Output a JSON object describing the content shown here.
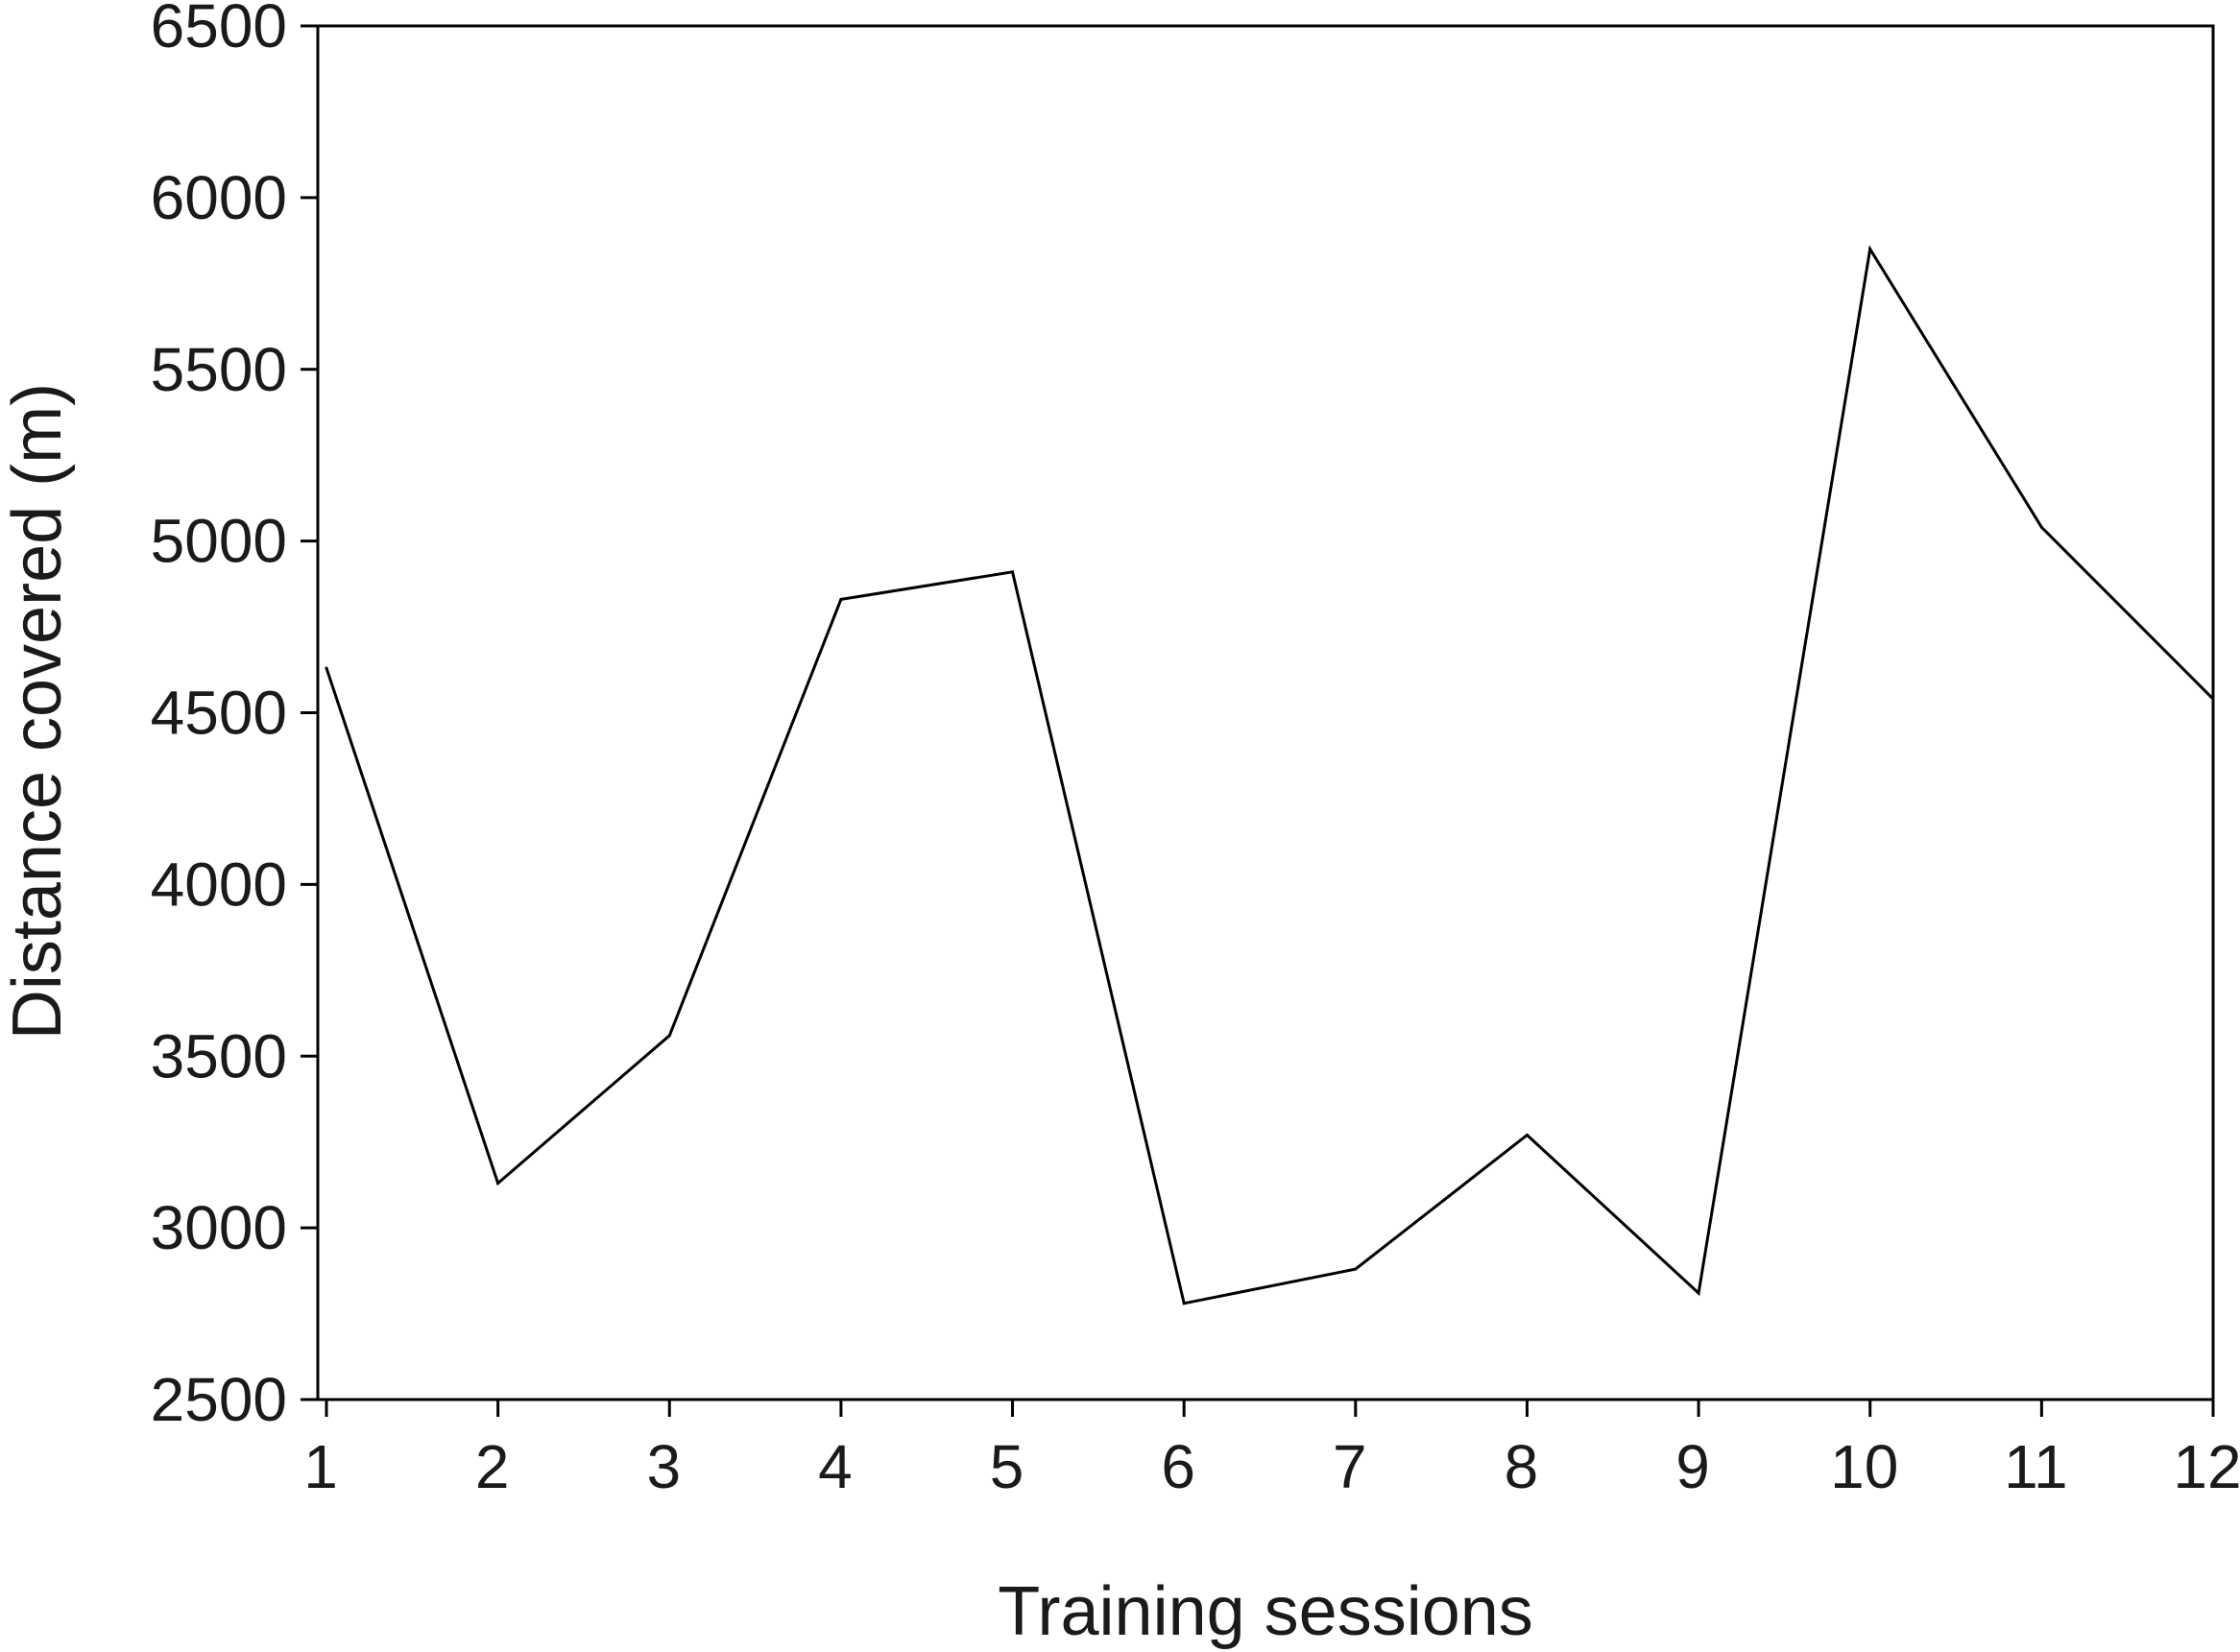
{
  "chart_data": {
    "type": "line",
    "title": "",
    "xlabel": "Training sessions",
    "ylabel": "Distance covered (m)",
    "x": [
      1,
      2,
      3,
      4,
      5,
      6,
      7,
      8,
      9,
      10,
      11,
      12
    ],
    "xticks": [
      "1",
      "2",
      "3",
      "4",
      "5",
      "6",
      "7",
      "8",
      "9",
      "10",
      "11",
      "12"
    ],
    "yticks": [
      "2500",
      "3000",
      "3500",
      "4000",
      "4500",
      "5000",
      "5500",
      "6000",
      "6500"
    ],
    "ylim": [
      2500,
      6500
    ],
    "xlim": [
      1,
      12
    ],
    "grid": false,
    "legend": "none",
    "series": [
      {
        "values": [
          4630,
          3130,
          3560,
          4830,
          4910,
          2780,
          2880,
          3270,
          2810,
          5850,
          5040,
          4540
        ],
        "color": "#000000"
      }
    ]
  }
}
